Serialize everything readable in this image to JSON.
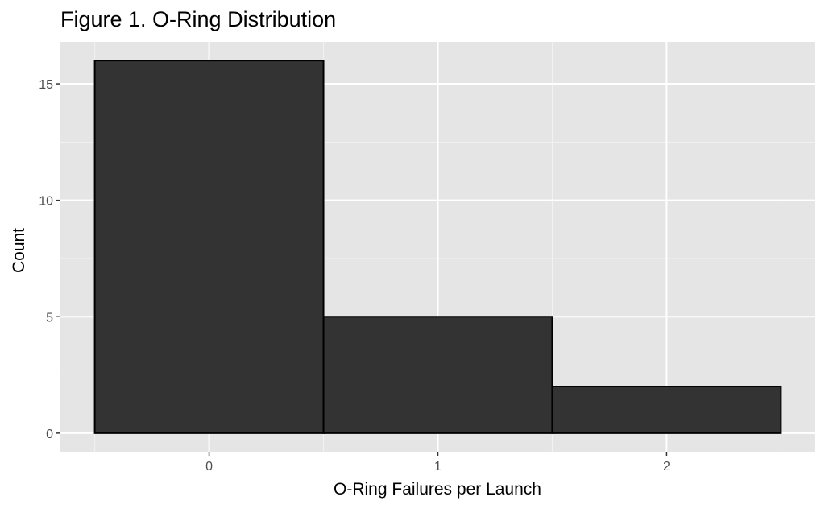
{
  "chart_data": {
    "type": "bar",
    "title": "Figure 1. O-Ring Distribution",
    "xlabel": "O-Ring Failures per Launch",
    "ylabel": "Count",
    "categories": [
      "0",
      "1",
      "2"
    ],
    "x": [
      0,
      1,
      2
    ],
    "values": [
      16,
      5,
      2
    ],
    "bin_width": 1,
    "xlim": [
      -0.65,
      2.65
    ],
    "ylim": [
      -0.8,
      16.8
    ],
    "x_ticks": [
      0,
      1,
      2
    ],
    "y_ticks": [
      0,
      5,
      10,
      15
    ],
    "grid": true,
    "colors": {
      "panel_background": "#e5e5e5",
      "grid_major": "#ffffff",
      "grid_minor": "#f2f2f2",
      "bar_fill": "#333333",
      "bar_outline": "#000000",
      "tick_mark": "#333333"
    }
  }
}
